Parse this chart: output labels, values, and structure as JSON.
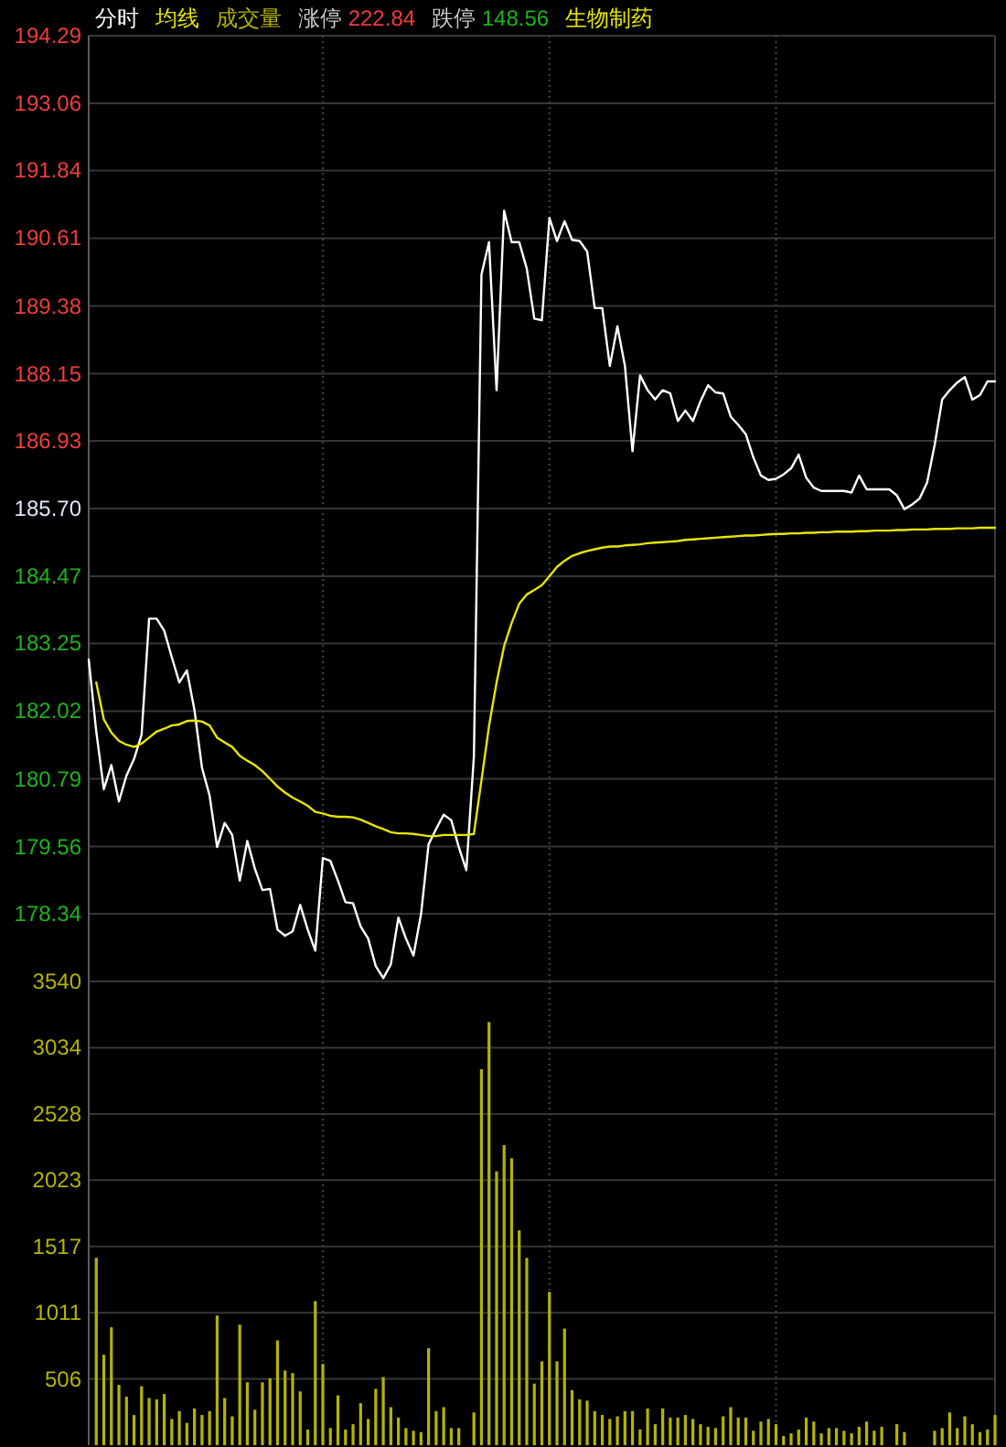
{
  "chart_data": [
    {
      "type": "line",
      "categories": [
        null,
        null,
        null,
        null,
        null,
        null,
        null,
        null,
        null,
        null,
        null,
        null,
        null,
        null,
        null,
        null,
        null,
        null,
        null,
        null,
        null,
        null,
        null,
        null,
        null,
        null,
        null,
        null,
        null,
        null,
        null,
        null,
        null,
        null,
        null,
        null,
        null,
        null,
        null,
        null,
        null,
        null,
        null,
        null,
        null,
        null,
        null,
        null,
        null,
        null,
        null,
        null,
        null,
        null,
        null,
        null,
        null,
        null,
        null,
        null,
        null,
        null,
        null,
        null,
        null,
        null,
        null,
        null,
        null,
        null,
        null,
        null,
        null,
        null,
        null,
        null,
        null,
        null,
        null,
        null,
        null,
        null,
        null,
        null,
        null,
        null,
        null,
        null,
        null,
        null,
        null,
        null,
        null,
        null,
        null,
        null,
        null,
        null,
        null,
        null,
        null,
        null,
        null,
        null,
        null,
        null,
        null,
        null,
        null,
        null,
        null,
        null,
        null,
        null,
        null,
        null,
        null,
        null,
        null,
        null,
        null
      ],
      "series": [
        {
          "name": "分时",
          "color": "#ffffff",
          "values": [
            182.96,
            181.65,
            180.6,
            181.04,
            180.38,
            180.85,
            181.15,
            181.59,
            183.7,
            183.7,
            183.48,
            183.0,
            182.54,
            182.76,
            182.04,
            180.99,
            180.49,
            179.55,
            179.99,
            179.77,
            178.94,
            179.66,
            179.16,
            178.77,
            178.79,
            178.05,
            177.94,
            178.02,
            178.5,
            178.05,
            177.67,
            179.35,
            179.3,
            178.94,
            178.55,
            178.53,
            178.11,
            177.89,
            177.39,
            177.17,
            177.42,
            178.27,
            177.89,
            177.58,
            178.33,
            179.6,
            179.88,
            180.14,
            180.04,
            179.55,
            179.13,
            181.2,
            189.95,
            190.54,
            187.85,
            191.11,
            190.54,
            190.54,
            190.06,
            189.15,
            189.12,
            190.98,
            190.56,
            190.92,
            190.58,
            190.56,
            190.37,
            189.34,
            189.34,
            188.29,
            189.01,
            188.29,
            186.74,
            188.12,
            187.85,
            187.68,
            187.85,
            187.79,
            187.29,
            187.48,
            187.29,
            187.65,
            187.94,
            187.81,
            187.79,
            187.37,
            187.22,
            187.05,
            186.63,
            186.3,
            186.22,
            186.24,
            186.32,
            186.43,
            186.68,
            186.26,
            186.08,
            186.02,
            186.02,
            186.02,
            186.02,
            185.99,
            186.3,
            186.05,
            186.05,
            186.05,
            186.05,
            185.94,
            185.69,
            185.77,
            185.88,
            186.17,
            186.85,
            187.68,
            187.85,
            187.99,
            188.09,
            187.68,
            187.76,
            188.01,
            188.01
          ]
        },
        {
          "name": "均线",
          "color": "#e6e600",
          "values": [
            null,
            182.54,
            181.87,
            181.63,
            181.48,
            181.41,
            181.37,
            181.43,
            181.54,
            181.65,
            181.7,
            181.76,
            181.78,
            181.84,
            181.85,
            181.83,
            181.76,
            181.54,
            181.45,
            181.37,
            181.21,
            181.12,
            181.04,
            180.93,
            180.79,
            180.65,
            180.54,
            180.45,
            180.38,
            180.3,
            180.19,
            180.16,
            180.12,
            180.1,
            180.1,
            180.09,
            180.05,
            179.99,
            179.93,
            179.88,
            179.82,
            179.8,
            179.8,
            179.79,
            179.77,
            179.75,
            179.75,
            179.77,
            179.77,
            179.77,
            179.77,
            179.79,
            180.76,
            181.75,
            182.54,
            183.2,
            183.62,
            183.97,
            184.14,
            184.22,
            184.31,
            184.47,
            184.64,
            184.75,
            184.84,
            184.89,
            184.93,
            184.96,
            184.99,
            185.01,
            185.01,
            185.03,
            185.04,
            185.05,
            185.07,
            185.08,
            185.09,
            185.1,
            185.11,
            185.13,
            185.14,
            185.15,
            185.16,
            185.17,
            185.18,
            185.19,
            185.2,
            185.21,
            185.21,
            185.22,
            185.23,
            185.24,
            185.24,
            185.25,
            185.25,
            185.26,
            185.26,
            185.27,
            185.27,
            185.28,
            185.28,
            185.28,
            185.29,
            185.29,
            185.3,
            185.3,
            185.3,
            185.31,
            185.31,
            185.32,
            185.32,
            185.32,
            185.33,
            185.33,
            185.33,
            185.34,
            185.34,
            185.34,
            185.35,
            185.35,
            185.35
          ]
        }
      ],
      "ylim": [
        177.11,
        194.29
      ],
      "yticks": [
        194.29,
        193.06,
        191.84,
        190.61,
        189.38,
        188.15,
        186.93,
        {
          "value": 185.7,
          "label": "185.70"
        },
        184.47,
        183.25,
        182.02,
        180.79,
        179.56,
        178.34
      ],
      "grid": true,
      "legend": "top left",
      "tick_labels": "y",
      "annotations": [
        "涨停 222.84",
        "跌停 148.56",
        "生物制药"
      ]
    },
    {
      "type": "bar",
      "categories": [
        null,
        null,
        null,
        null,
        null,
        null,
        null,
        null,
        null,
        null,
        null,
        null,
        null,
        null,
        null,
        null,
        null,
        null,
        null,
        null,
        null,
        null,
        null,
        null,
        null,
        null,
        null,
        null,
        null,
        null,
        null,
        null,
        null,
        null,
        null,
        null,
        null,
        null,
        null,
        null,
        null,
        null,
        null,
        null,
        null,
        null,
        null,
        null,
        null,
        null,
        null,
        null,
        null,
        null,
        null,
        null,
        null,
        null,
        null,
        null,
        null,
        null,
        null,
        null,
        null,
        null,
        null,
        null,
        null,
        null,
        null,
        null,
        null,
        null,
        null,
        null,
        null,
        null,
        null,
        null,
        null,
        null,
        null,
        null,
        null,
        null,
        null,
        null,
        null,
        null,
        null,
        null,
        null,
        null,
        null,
        null,
        null,
        null,
        null,
        null,
        null,
        null,
        null,
        null,
        null,
        null,
        null,
        null,
        null,
        null,
        null,
        null,
        null,
        null,
        null,
        null,
        null,
        null,
        null,
        null,
        null
      ],
      "series": [
        {
          "name": "成交量",
          "color": "#b4b400",
          "values": [
            null,
            1430,
            690,
            900,
            460,
            370,
            230,
            450,
            360,
            350,
            390,
            200,
            260,
            170,
            280,
            230,
            260,
            990,
            360,
            220,
            920,
            480,
            270,
            480,
            510,
            800,
            570,
            550,
            410,
            120,
            1100,
            620,
            130,
            380,
            120,
            160,
            320,
            200,
            430,
            520,
            290,
            210,
            130,
            110,
            100,
            740,
            260,
            290,
            130,
            130,
            null,
            250,
            2870,
            3230,
            2090,
            2290,
            2190,
            1640,
            1430,
            470,
            640,
            1170,
            640,
            890,
            420,
            350,
            340,
            260,
            230,
            200,
            220,
            260,
            260,
            120,
            280,
            160,
            280,
            210,
            210,
            230,
            200,
            160,
            140,
            130,
            220,
            290,
            210,
            210,
            110,
            180,
            200,
            160,
            70,
            90,
            120,
            210,
            180,
            90,
            130,
            130,
            110,
            90,
            140,
            180,
            110,
            140,
            null,
            160,
            100,
            null,
            null,
            null,
            110,
            130,
            250,
            130,
            220,
            160,
            100,
            120,
            230
          ]
        }
      ],
      "ylim": [
        0,
        3540
      ],
      "yticks": [
        3540,
        3034,
        2528,
        2023,
        1517,
        1011,
        506
      ],
      "grid": true,
      "legend": "top left",
      "tick_labels": "y"
    }
  ]
}
